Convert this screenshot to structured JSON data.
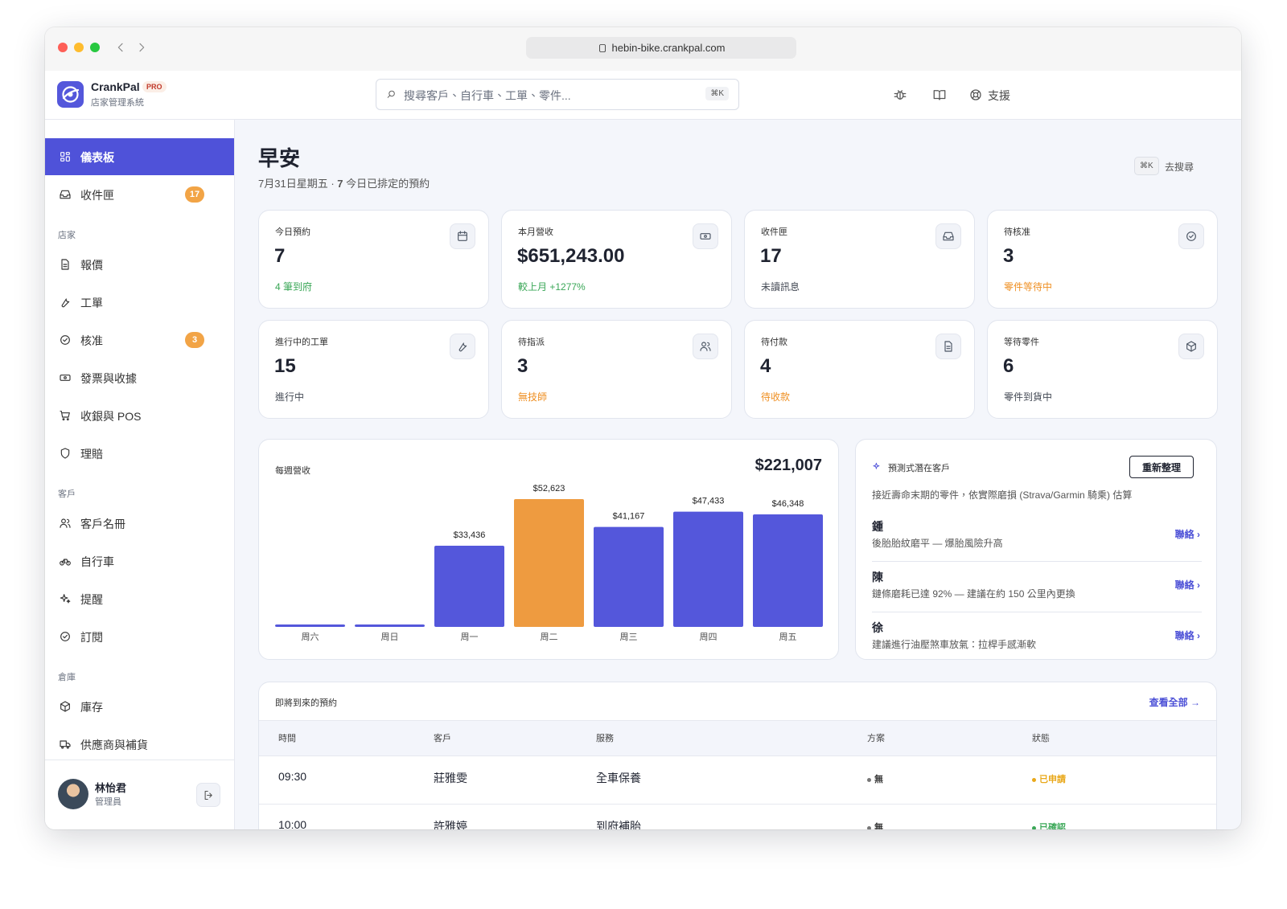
{
  "browser": {
    "url": "hebin-bike.crankpal.com"
  },
  "brand": {
    "name": "CrankPal",
    "badge": "PRO",
    "subtitle": "店家管理系統"
  },
  "search": {
    "placeholder": "搜尋客戶、自行車、工單、零件...",
    "shortcut": "⌘K"
  },
  "top_actions": {
    "support": "支援"
  },
  "sidebar": {
    "items": [
      {
        "label": "儀表板",
        "active": true
      },
      {
        "label": "收件匣",
        "badge": 17
      }
    ],
    "sections": [
      {
        "title": "店家",
        "items": [
          {
            "label": "報價"
          },
          {
            "label": "工單"
          },
          {
            "label": "核准",
            "badge": 3
          },
          {
            "label": "發票與收據"
          },
          {
            "label": "收銀與 POS"
          },
          {
            "label": "理賠"
          }
        ]
      },
      {
        "title": "客戶",
        "items": [
          {
            "label": "客戶名冊"
          },
          {
            "label": "自行車"
          },
          {
            "label": "提醒"
          },
          {
            "label": "訂閱"
          }
        ]
      },
      {
        "title": "倉庫",
        "items": [
          {
            "label": "庫存"
          },
          {
            "label": "供應商與補貨"
          }
        ]
      }
    ]
  },
  "user": {
    "name": "林怡君",
    "role": "管理員"
  },
  "header": {
    "greeting": "早安",
    "date": "7月31日星期五",
    "separator": "·",
    "appointment_count": 7,
    "appointment_text": "今日已排定的預約",
    "search_shortcut": "⌘K",
    "search_label": "去搜尋"
  },
  "stats": [
    {
      "label": "今日預約",
      "value": 7,
      "note": "4 筆到府",
      "note_color": "#3aa757"
    },
    {
      "label": "本月營收",
      "value": "$651,243.00",
      "note": "較上月 +1277%",
      "note_color": "#3aa757"
    },
    {
      "label": "收件匣",
      "value": 17,
      "note": "未讀訊息",
      "note_color": "#444a55"
    },
    {
      "label": "待核准",
      "value": 3,
      "note": "零件等待中",
      "note_color": "#ef8f22"
    },
    {
      "label": "進行中的工單",
      "value": 15,
      "note": "進行中",
      "note_color": "#444a55"
    },
    {
      "label": "待指派",
      "value": 3,
      "note": "無技師",
      "note_color": "#ef8f22"
    },
    {
      "label": "待付款",
      "value": 4,
      "note": "待收款",
      "note_color": "#ef8f22"
    },
    {
      "label": "等待零件",
      "value": 6,
      "note": "零件到貨中",
      "note_color": "#444a55"
    }
  ],
  "weekly_revenue": {
    "type": "bar",
    "title": "每週營收",
    "total": "$221,007",
    "categories": [
      "周六",
      "周日",
      "周一",
      "周二",
      "周三",
      "周四",
      "周五"
    ],
    "values": [
      0,
      0,
      33436,
      52623,
      41167,
      47433,
      46348
    ],
    "value_labels": [
      null,
      null,
      "$33,436",
      "$52,623",
      "$41,167",
      "$47,433",
      "$46,348"
    ],
    "colors": [
      "#5457db",
      "#5457db",
      "#5457db",
      "#ee9b40",
      "#5457db",
      "#5457db",
      "#5457db"
    ]
  },
  "leads": {
    "title": "預測式潛在客戶",
    "button": "重新整理",
    "description": "接近壽命末期的零件，依實際磨損 (Strava/Garmin 騎乘) 估算",
    "items": [
      {
        "name": "鍾",
        "text": "後胎胎紋磨平 — 爆胎風險升高",
        "action": "聯絡 ›"
      },
      {
        "name": "陳",
        "text": "鏈條磨耗已達 92% — 建議在約 150 公里內更換",
        "action": "聯絡 ›"
      },
      {
        "name": "徐",
        "text": "建議進行油壓煞車放氣：拉桿手感漸軟",
        "action": "聯絡 ›"
      }
    ]
  },
  "appointments": {
    "title": "即將到來的預約",
    "link": "查看全部 →",
    "columns": [
      "時間",
      "客戶",
      "服務",
      "方案",
      "狀態"
    ],
    "rows": [
      {
        "time": "09:30",
        "customer": "莊雅雯",
        "service": "全車保養",
        "plan": "無",
        "status": "已申請",
        "status_color": "#e9a81a"
      },
      {
        "time": "10:00",
        "customer": "許雅婷",
        "service": "到府補胎",
        "plan": "無",
        "status": "已確認",
        "status_color": "#3aa757"
      }
    ]
  }
}
